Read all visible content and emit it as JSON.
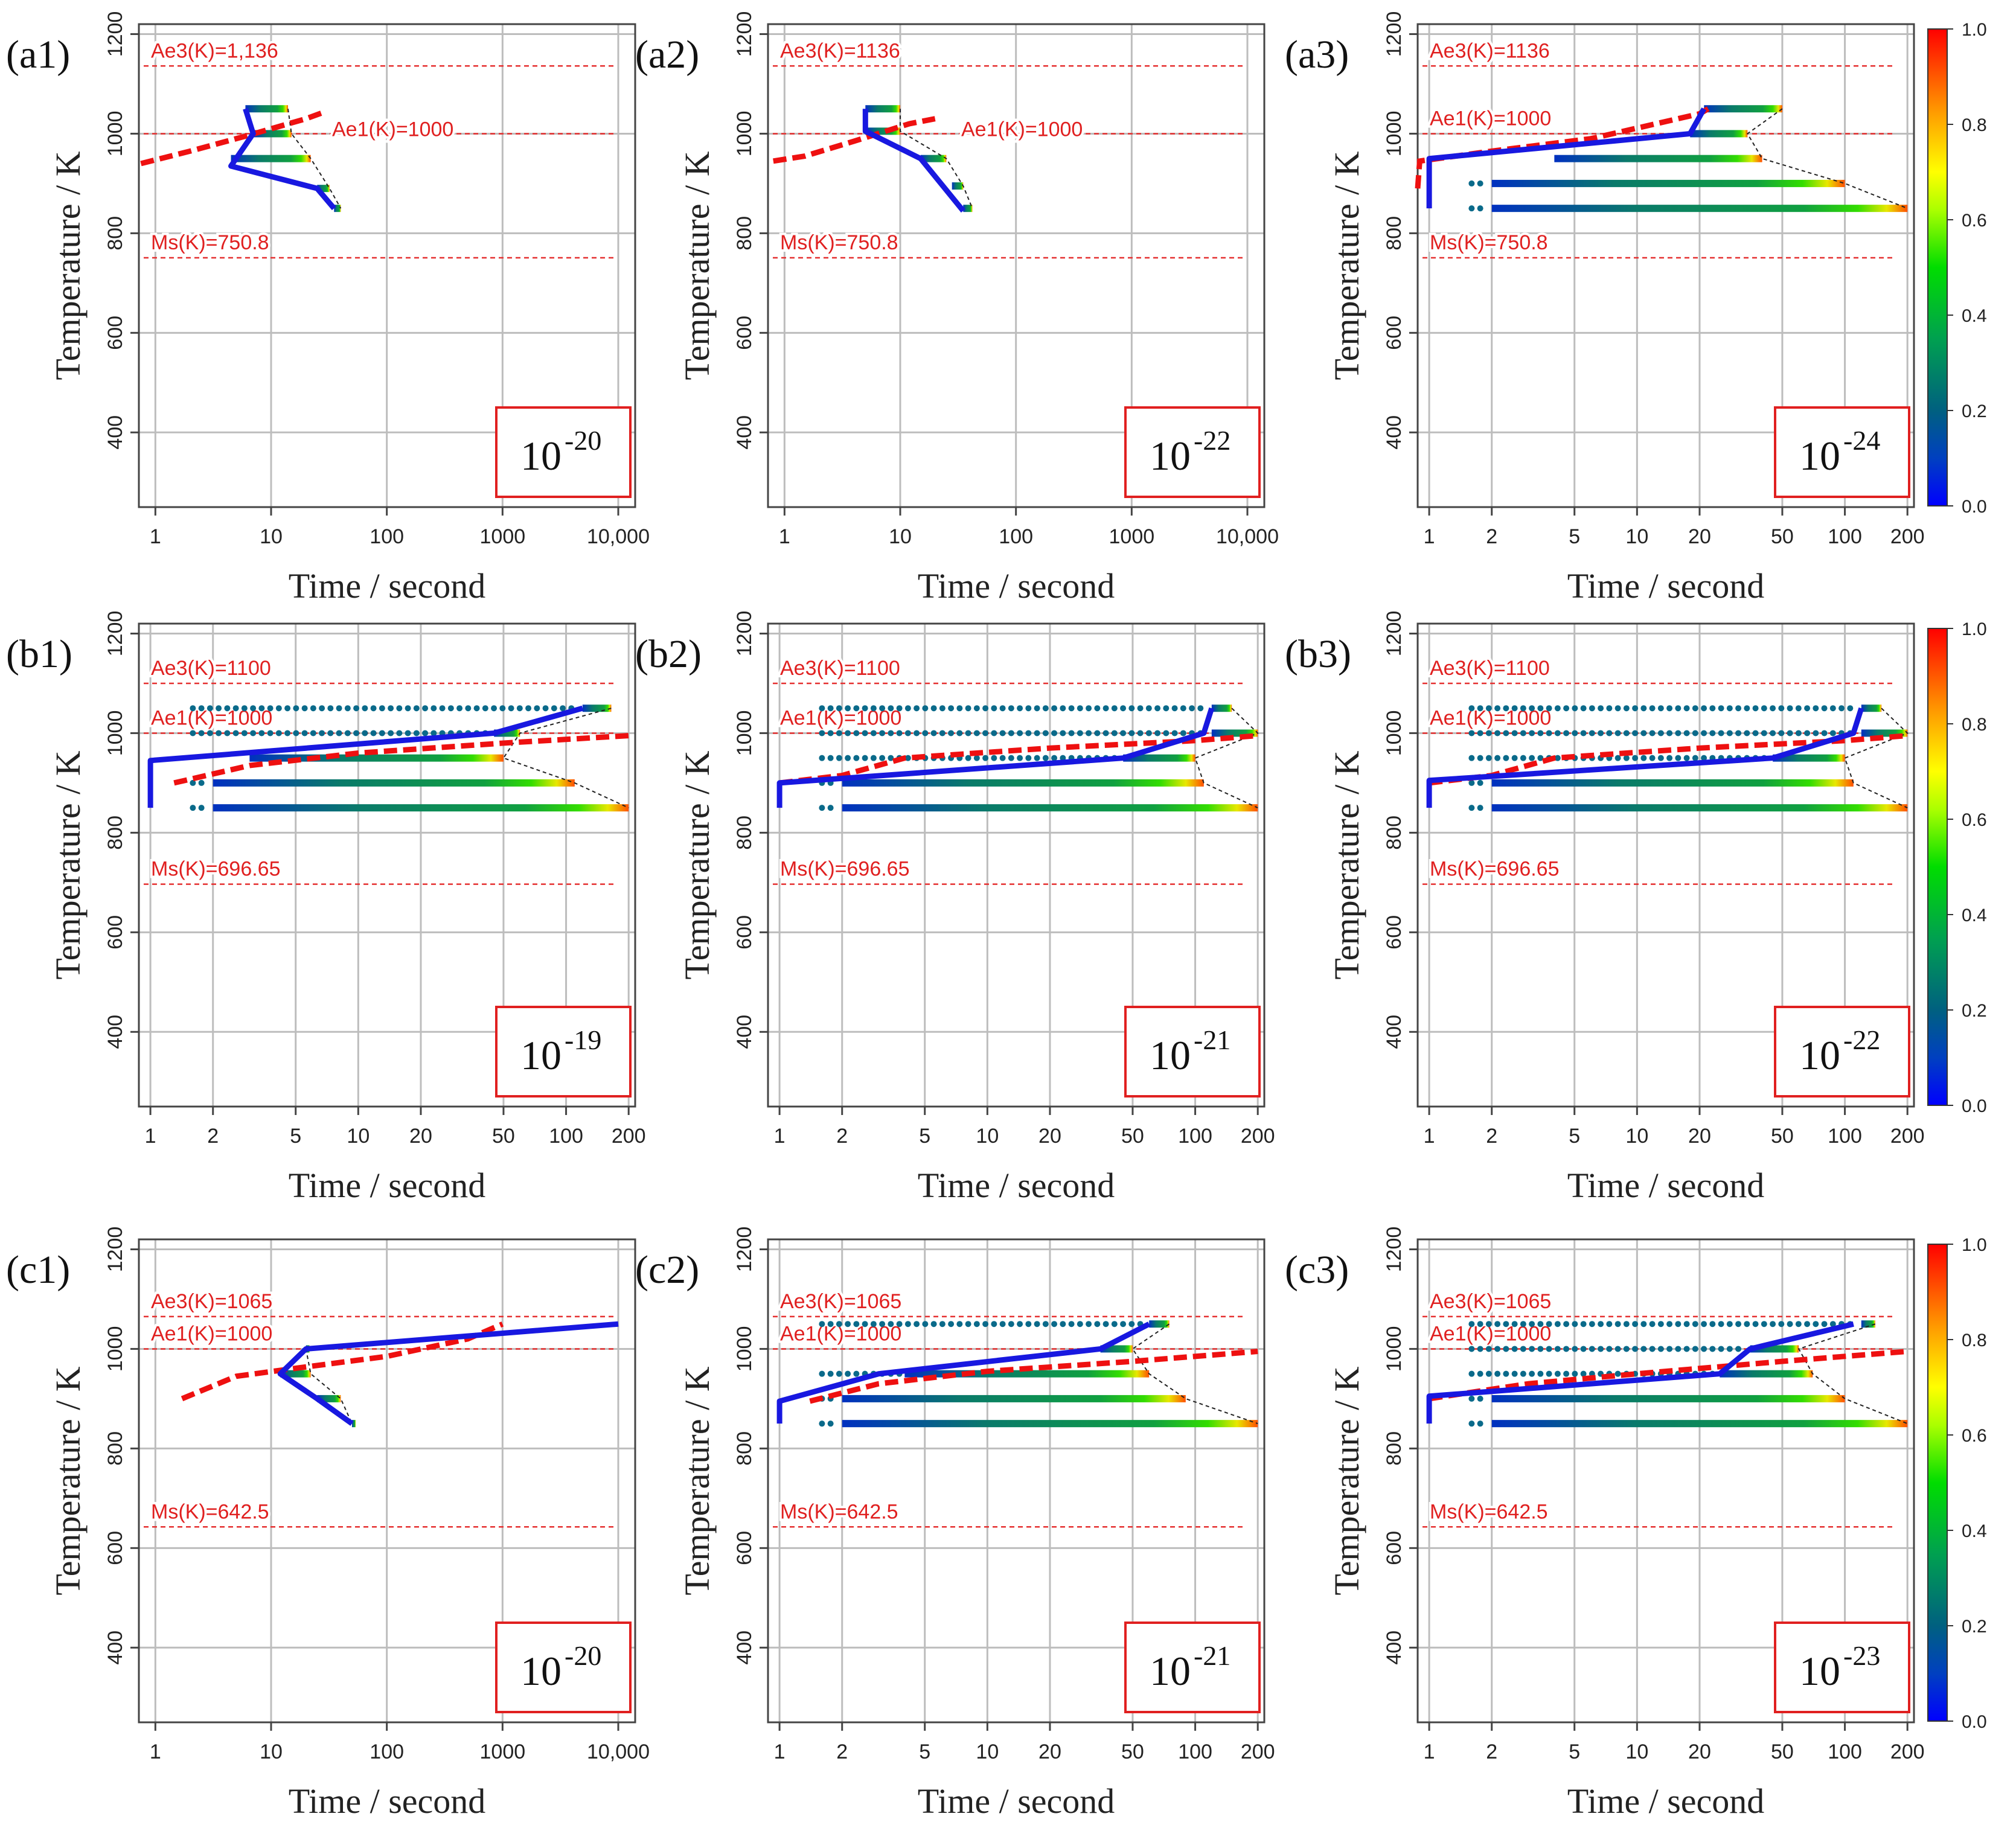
{
  "figure": {
    "x_label": "Time / second",
    "y_label": "Temperature / K",
    "colorbar_ticks": [
      "0.0",
      "0.2",
      "0.4",
      "0.6",
      "0.8",
      "1.0"
    ],
    "colors": {
      "axis": "#444444",
      "grid": "#bdbdbd",
      "ref_line": "#e53030",
      "ref_text": "#e02020",
      "path": "#1818e0",
      "box": "#e02020"
    }
  },
  "chart_data": [
    {
      "panel": "(a1)",
      "type": "line",
      "scale": "log",
      "xticks": [
        "1",
        "10",
        "100",
        "1000",
        "10,000"
      ],
      "xvals": [
        1,
        10,
        100,
        1000,
        10000
      ],
      "ylim": [
        250,
        1220
      ],
      "yticks": [
        400,
        600,
        800,
        1000,
        1200
      ],
      "annotations": {
        "ae3": "Ae3(K)=1,136",
        "ae1": "Ae1(K)=1000",
        "ms": "Ms(K)=750.8",
        "coeff_base": "10",
        "coeff_exp": "-20"
      },
      "ae3": 1136,
      "ae1": 1000,
      "ms": 750.8,
      "critical_curve": [
        [
          0.75,
          940
        ],
        [
          2,
          965
        ],
        [
          6,
          995
        ],
        [
          20,
          1030
        ],
        [
          30,
          1045
        ]
      ],
      "path": [
        [
          6,
          1050
        ],
        [
          7,
          1000
        ],
        [
          4.5,
          935
        ],
        [
          25,
          890
        ],
        [
          35,
          850
        ]
      ],
      "isotherms": [
        [
          6,
          1050,
          14
        ],
        [
          7,
          1000,
          15
        ],
        [
          4.5,
          950,
          22
        ],
        [
          25,
          890,
          32
        ],
        [
          35,
          850,
          40
        ]
      ]
    },
    {
      "panel": "(a2)",
      "type": "line",
      "scale": "log",
      "xticks": [
        "1",
        "10",
        "100",
        "1000",
        "10,000"
      ],
      "xvals": [
        1,
        10,
        100,
        1000,
        10000
      ],
      "ylim": [
        250,
        1220
      ],
      "yticks": [
        400,
        600,
        800,
        1000,
        1200
      ],
      "annotations": {
        "ae3": "Ae3(K)=1136",
        "ae1": "Ae1(K)=1000",
        "ms": "Ms(K)=750.8",
        "coeff_base": "10",
        "coeff_exp": "-22"
      },
      "ae3": 1136,
      "ae1": 1000,
      "ms": 750.8,
      "critical_curve": [
        [
          0.8,
          945
        ],
        [
          1.5,
          955
        ],
        [
          4,
          985
        ],
        [
          12,
          1020
        ],
        [
          20,
          1030
        ]
      ],
      "path": [
        [
          5,
          1050
        ],
        [
          5,
          1005
        ],
        [
          15,
          950
        ],
        [
          35,
          845
        ]
      ],
      "isotherms": [
        [
          5,
          1050,
          10
        ],
        [
          5,
          1005,
          10
        ],
        [
          15,
          950,
          25
        ],
        [
          28,
          895,
          35
        ],
        [
          35,
          850,
          42
        ]
      ]
    },
    {
      "panel": "(a3)",
      "type": "line",
      "scale": "log",
      "xticks": [
        "1",
        "2",
        "5",
        "10",
        "20",
        "50",
        "100",
        "200"
      ],
      "xvals": [
        1,
        2,
        5,
        10,
        20,
        50,
        100,
        200
      ],
      "ylim": [
        250,
        1220
      ],
      "yticks": [
        400,
        600,
        800,
        1000,
        1200
      ],
      "annotations": {
        "ae3": "Ae3(K)=1136",
        "ae1": "Ae1(K)=1000",
        "ms": "Ms(K)=750.8",
        "coeff_base": "10",
        "coeff_exp": "-24"
      },
      "ae3": 1136,
      "ae1": 1000,
      "ms": 750.8,
      "critical_curve": [
        [
          0.88,
          890
        ],
        [
          0.9,
          945
        ],
        [
          2,
          965
        ],
        [
          6,
          990
        ],
        [
          20,
          1040
        ],
        [
          22,
          1050
        ]
      ],
      "path": [
        [
          1,
          850
        ],
        [
          1,
          950
        ],
        [
          18,
          1000
        ],
        [
          21,
          1050
        ]
      ],
      "isotherms": [
        [
          21,
          1050,
          50
        ],
        [
          18,
          1000,
          34
        ],
        [
          4,
          950,
          40
        ],
        [
          2,
          900,
          100
        ],
        [
          2,
          850,
          200
        ]
      ]
    },
    {
      "panel": "(b1)",
      "type": "line",
      "scale": "log",
      "xticks": [
        "1",
        "2",
        "5",
        "10",
        "20",
        "50",
        "100",
        "200"
      ],
      "xvals": [
        1,
        2,
        5,
        10,
        20,
        50,
        100,
        200
      ],
      "ylim": [
        250,
        1220
      ],
      "yticks": [
        400,
        600,
        800,
        1000,
        1200
      ],
      "annotations": {
        "ae3": "Ae3(K)=1100",
        "ae1": "Ae1(K)=1000",
        "ms": "Ms(K)=696.65",
        "coeff_base": "10",
        "coeff_exp": "-19"
      },
      "ae3": 1100,
      "ae1": 1000,
      "ms": 696.65,
      "critical_curve": [
        [
          1.3,
          900
        ],
        [
          3,
          935
        ],
        [
          10,
          960
        ],
        [
          50,
          980
        ],
        [
          200,
          995
        ]
      ],
      "path": [
        [
          1,
          850
        ],
        [
          1,
          945
        ],
        [
          45,
          1000
        ],
        [
          120,
          1050
        ]
      ],
      "isotherms": [
        [
          120,
          1050,
          165
        ],
        [
          45,
          1000,
          60
        ],
        [
          3,
          950,
          50
        ],
        [
          2,
          900,
          110
        ],
        [
          2,
          850,
          200
        ]
      ]
    },
    {
      "panel": "(b2)",
      "type": "line",
      "scale": "log",
      "xticks": [
        "1",
        "2",
        "5",
        "10",
        "20",
        "50",
        "100",
        "200"
      ],
      "xvals": [
        1,
        2,
        5,
        10,
        20,
        50,
        100,
        200
      ],
      "ylim": [
        250,
        1220
      ],
      "yticks": [
        400,
        600,
        800,
        1000,
        1200
      ],
      "annotations": {
        "ae3": "Ae3(K)=1100",
        "ae1": "Ae1(K)=1000",
        "ms": "Ms(K)=696.65",
        "coeff_base": "10",
        "coeff_exp": "-21"
      },
      "ae3": 1100,
      "ae1": 1000,
      "ms": 696.65,
      "critical_curve": [
        [
          1,
          900
        ],
        [
          2,
          915
        ],
        [
          4,
          950
        ],
        [
          20,
          970
        ],
        [
          100,
          985
        ],
        [
          200,
          995
        ]
      ],
      "path": [
        [
          1,
          850
        ],
        [
          1,
          900
        ],
        [
          45,
          950
        ],
        [
          110,
          1000
        ],
        [
          120,
          1050
        ]
      ],
      "isotherms": [
        [
          120,
          1050,
          150
        ],
        [
          120,
          1000,
          200
        ],
        [
          45,
          950,
          100
        ],
        [
          2,
          900,
          110
        ],
        [
          2,
          850,
          200
        ]
      ]
    },
    {
      "panel": "(b3)",
      "type": "line",
      "scale": "log",
      "xticks": [
        "1",
        "2",
        "5",
        "10",
        "20",
        "50",
        "100",
        "200"
      ],
      "xvals": [
        1,
        2,
        5,
        10,
        20,
        50,
        100,
        200
      ],
      "ylim": [
        250,
        1220
      ],
      "yticks": [
        400,
        600,
        800,
        1000,
        1200
      ],
      "annotations": {
        "ae3": "Ae3(K)=1100",
        "ae1": "Ae1(K)=1000",
        "ms": "Ms(K)=696.65",
        "coeff_base": "10",
        "coeff_exp": "-22"
      },
      "ae3": 1100,
      "ae1": 1000,
      "ms": 696.65,
      "critical_curve": [
        [
          1,
          900
        ],
        [
          2,
          915
        ],
        [
          4,
          950
        ],
        [
          20,
          970
        ],
        [
          100,
          985
        ],
        [
          200,
          995
        ]
      ],
      "path": [
        [
          1,
          850
        ],
        [
          1,
          905
        ],
        [
          45,
          950
        ],
        [
          110,
          1000
        ],
        [
          120,
          1050
        ]
      ],
      "isotherms": [
        [
          120,
          1050,
          150
        ],
        [
          120,
          1000,
          200
        ],
        [
          45,
          950,
          100
        ],
        [
          2,
          900,
          110
        ],
        [
          2,
          850,
          200
        ]
      ]
    },
    {
      "panel": "(c1)",
      "type": "line",
      "scale": "log",
      "xticks": [
        "1",
        "10",
        "100",
        "1000",
        "10,000"
      ],
      "xvals": [
        1,
        10,
        100,
        1000,
        10000
      ],
      "ylim": [
        250,
        1220
      ],
      "yticks": [
        400,
        600,
        800,
        1000,
        1200
      ],
      "annotations": {
        "ae3": "Ae3(K)=1065",
        "ae1": "Ae1(K)=1000",
        "ms": "Ms(K)=642.5",
        "coeff_base": "10",
        "coeff_exp": "-20"
      },
      "ae3": 1065,
      "ae1": 1000,
      "ms": 642.5,
      "critical_curve": [
        [
          1.7,
          900
        ],
        [
          5,
          945
        ],
        [
          15,
          960
        ],
        [
          100,
          985
        ],
        [
          500,
          1020
        ],
        [
          1000,
          1050
        ]
      ],
      "path": [
        [
          10000,
          1050
        ],
        [
          20,
          1000
        ],
        [
          12,
          950
        ],
        [
          25,
          900
        ],
        [
          50,
          850
        ]
      ],
      "isotherms": [
        [
          20,
          1000,
          20
        ],
        [
          12,
          950,
          22
        ],
        [
          25,
          900,
          40
        ],
        [
          50,
          850,
          50
        ]
      ]
    },
    {
      "panel": "(c2)",
      "type": "line",
      "scale": "log",
      "xticks": [
        "1",
        "2",
        "5",
        "10",
        "20",
        "50",
        "100",
        "200"
      ],
      "xvals": [
        1,
        2,
        5,
        10,
        20,
        50,
        100,
        200
      ],
      "ylim": [
        250,
        1220
      ],
      "yticks": [
        400,
        600,
        800,
        1000,
        1200
      ],
      "annotations": {
        "ae3": "Ae3(K)=1065",
        "ae1": "Ae1(K)=1000",
        "ms": "Ms(K)=642.5",
        "coeff_base": "10",
        "coeff_exp": "-21"
      },
      "ae3": 1065,
      "ae1": 1000,
      "ms": 642.5,
      "critical_curve": [
        [
          1.4,
          895
        ],
        [
          3,
          930
        ],
        [
          10,
          955
        ],
        [
          50,
          975
        ],
        [
          200,
          995
        ]
      ],
      "path": [
        [
          1,
          850
        ],
        [
          1,
          895
        ],
        [
          3,
          950
        ],
        [
          35,
          1000
        ],
        [
          60,
          1050
        ]
      ],
      "isotherms": [
        [
          60,
          1050,
          75
        ],
        [
          35,
          1000,
          50
        ],
        [
          4,
          950,
          60
        ],
        [
          2,
          900,
          90
        ],
        [
          2,
          850,
          200
        ]
      ]
    },
    {
      "panel": "(c3)",
      "type": "line",
      "scale": "log",
      "xticks": [
        "1",
        "2",
        "5",
        "10",
        "20",
        "50",
        "100",
        "200"
      ],
      "xvals": [
        1,
        2,
        5,
        10,
        20,
        50,
        100,
        200
      ],
      "ylim": [
        250,
        1220
      ],
      "yticks": [
        400,
        600,
        800,
        1000,
        1200
      ],
      "annotations": {
        "ae3": "Ae3(K)=1065",
        "ae1": "Ae1(K)=1000",
        "ms": "Ms(K)=642.5",
        "coeff_base": "10",
        "coeff_exp": "-23"
      },
      "ae3": 1065,
      "ae1": 1000,
      "ms": 642.5,
      "critical_curve": [
        [
          1,
          900
        ],
        [
          3,
          930
        ],
        [
          10,
          950
        ],
        [
          50,
          975
        ],
        [
          200,
          995
        ]
      ],
      "path": [
        [
          1,
          850
        ],
        [
          1,
          905
        ],
        [
          25,
          950
        ],
        [
          35,
          1000
        ],
        [
          110,
          1050
        ]
      ],
      "isotherms": [
        [
          120,
          1050,
          140
        ],
        [
          35,
          1000,
          60
        ],
        [
          25,
          950,
          70
        ],
        [
          2,
          900,
          100
        ],
        [
          2,
          850,
          200
        ]
      ]
    }
  ]
}
